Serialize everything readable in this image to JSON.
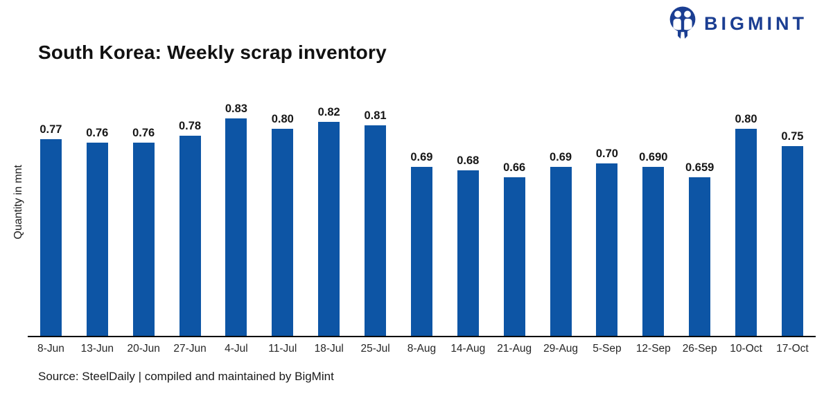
{
  "header": {
    "brand": "BIGMINT"
  },
  "chart_data": {
    "type": "bar",
    "title": "South Korea: Weekly scrap inventory",
    "xlabel": "",
    "ylabel": "Quantity in mnt",
    "categories": [
      "8-Jun",
      "13-Jun",
      "20-Jun",
      "27-Jun",
      "4-Jul",
      "11-Jul",
      "18-Jul",
      "25-Jul",
      "8-Aug",
      "14-Aug",
      "21-Aug",
      "29-Aug",
      "5-Sep",
      "12-Sep",
      "26-Sep",
      "10-Oct",
      "17-Oct"
    ],
    "values": [
      0.77,
      0.76,
      0.76,
      0.78,
      0.83,
      0.8,
      0.82,
      0.81,
      0.69,
      0.68,
      0.66,
      0.69,
      0.7,
      0.69,
      0.659,
      0.8,
      0.75
    ],
    "value_labels": [
      "0.77",
      "0.76",
      "0.76",
      "0.78",
      "0.83",
      "0.80",
      "0.82",
      "0.81",
      "0.69",
      "0.68",
      "0.66",
      "0.69",
      "0.70",
      "0.690",
      "0.659",
      "0.80",
      "0.75"
    ],
    "ylim": [
      0.2,
      0.9
    ],
    "grid": false,
    "legend": false,
    "y_axis_ticks_visible": false,
    "data_label_position": "above",
    "bar_color": "#0d55a5"
  },
  "footer": {
    "source": "Source: SteelDaily | compiled and maintained by BigMint"
  },
  "colors": {
    "brand_navy": "#1b3e92",
    "bar_blue": "#0d55a5",
    "axis_line": "#000000",
    "background": "#ffffff"
  }
}
